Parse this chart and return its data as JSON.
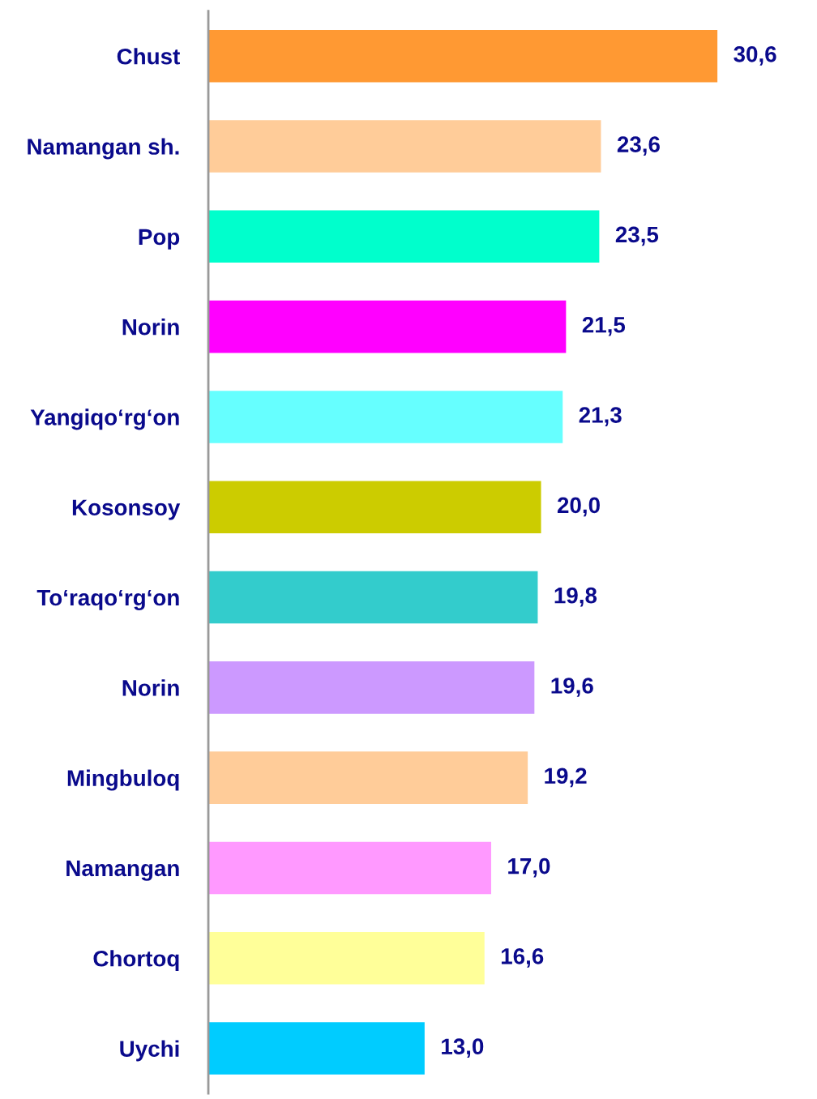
{
  "chart_data": {
    "type": "bar",
    "orientation": "horizontal",
    "categories": [
      "Chust",
      "Namangan sh.",
      "Pop",
      "Norin",
      "Yangiqo‘rg‘on",
      "Kosonsoy",
      "To‘raqo‘rg‘on",
      "Norin",
      "Mingbuloq",
      "Namangan",
      "Chortoq",
      "Uychi"
    ],
    "values": [
      30.6,
      23.6,
      23.5,
      21.5,
      21.3,
      20.0,
      19.8,
      19.6,
      19.2,
      17.0,
      16.6,
      13.0
    ],
    "value_labels": [
      "30,6",
      "23,6",
      "23,5",
      "21,5",
      "21,3",
      "20,0",
      "19,8",
      "19,6",
      "19,2",
      "17,0",
      "16,6",
      "13,0"
    ],
    "colors": [
      "#ff9933",
      "#ffcc99",
      "#00ffcc",
      "#ff00ff",
      "#66ffff",
      "#cccc00",
      "#33cccc",
      "#cc99ff",
      "#ffcc99",
      "#ff99ff",
      "#ffff99",
      "#00ccff"
    ],
    "grid": false,
    "legend": false
  }
}
